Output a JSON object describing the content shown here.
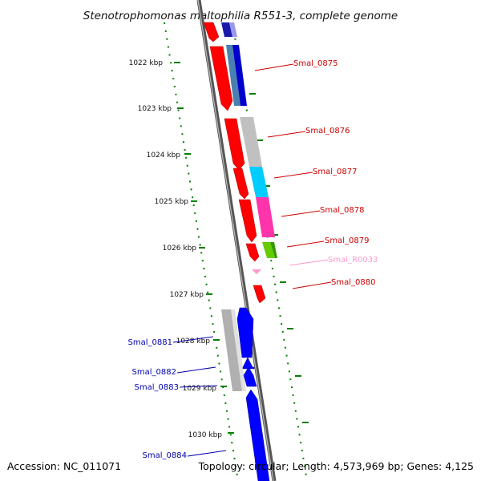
{
  "title": "Stenotrophomonas maltophilia R551-3, complete genome",
  "accession": "Accession: NC_011071",
  "topology": "Topology: circular; Length: 4,573,969 bp; Genes: 4,125",
  "colors": {
    "forward_cds": "#ff0000",
    "reverse_cds": "#0000ff",
    "rna": "#ff99cc",
    "backbone": "#808080",
    "tick": "#008000",
    "label_forward": "#cc0000",
    "label_reverse": "#0000aa",
    "label_rna": "#ff99cc"
  },
  "ticks": [
    {
      "label": "1022 kbp"
    },
    {
      "label": "1023 kbp"
    },
    {
      "label": "1024 kbp"
    },
    {
      "label": "1025 kbp"
    },
    {
      "label": "1026 kbp"
    },
    {
      "label": "1027 kbp"
    },
    {
      "label": "1028 kbp"
    },
    {
      "label": "1029 kbp"
    },
    {
      "label": "1030 kbp"
    }
  ],
  "gene_labels": [
    {
      "name": "Smal_0875",
      "kind": "forward"
    },
    {
      "name": "Smal_0876",
      "kind": "forward"
    },
    {
      "name": "Smal_0877",
      "kind": "forward"
    },
    {
      "name": "Smal_0878",
      "kind": "forward"
    },
    {
      "name": "Smal_0879",
      "kind": "forward"
    },
    {
      "name": "Smal_R0033",
      "kind": "rna"
    },
    {
      "name": "Smal_0880",
      "kind": "forward"
    },
    {
      "name": "Smal_0881",
      "kind": "reverse"
    },
    {
      "name": "Smal_0882",
      "kind": "reverse"
    },
    {
      "name": "Smal_0883",
      "kind": "reverse"
    },
    {
      "name": "Smal_0884",
      "kind": "reverse"
    }
  ]
}
